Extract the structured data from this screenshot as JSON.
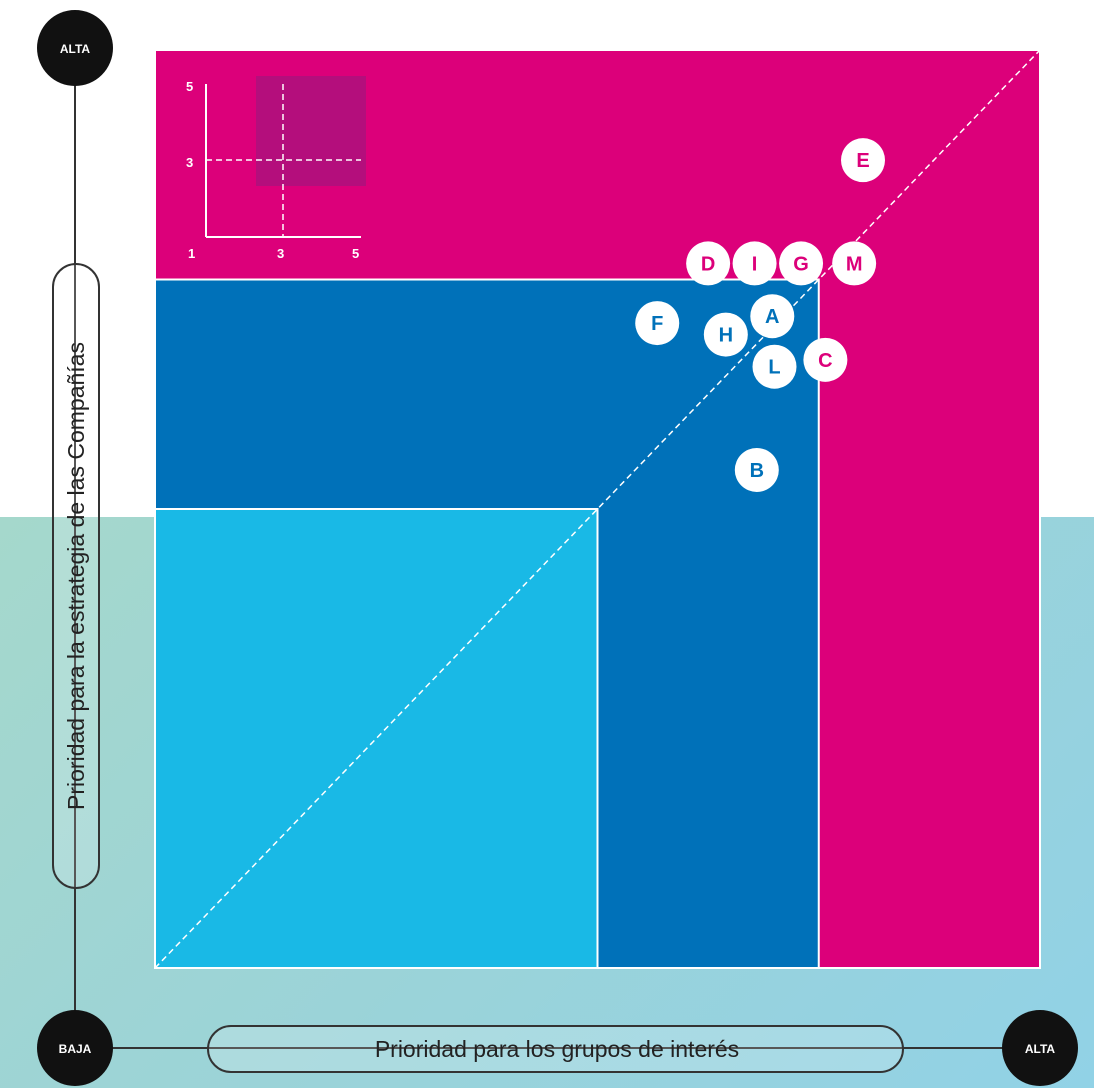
{
  "chart_data": {
    "type": "scatter",
    "title": "",
    "xlabel": "Prioridad para los grupos de interés",
    "ylabel": "Prioridad para la estrategia de las Compañías",
    "xlim": [
      1,
      5
    ],
    "ylim": [
      1,
      5
    ],
    "x_low_label": "BAJA",
    "x_high_label": "ALTA",
    "y_high_label": "ALTA",
    "zones": [
      {
        "x0": 1,
        "x1": 5,
        "y0": 1,
        "y1": 5,
        "color": "#dc007a"
      },
      {
        "x0": 1,
        "x1": 4,
        "y0": 1,
        "y1": 4,
        "color": "#0071b9"
      },
      {
        "x0": 1,
        "x1": 3,
        "y0": 1,
        "y1": 3,
        "color": "#19b9e6"
      }
    ],
    "points": [
      {
        "label": "E",
        "x": 4.2,
        "y": 4.52
      },
      {
        "label": "D",
        "x": 3.5,
        "y": 4.07
      },
      {
        "label": "I",
        "x": 3.71,
        "y": 4.07
      },
      {
        "label": "G",
        "x": 3.92,
        "y": 4.07
      },
      {
        "label": "M",
        "x": 4.16,
        "y": 4.07
      },
      {
        "label": "F",
        "x": 3.27,
        "y": 3.81
      },
      {
        "label": "A",
        "x": 3.79,
        "y": 3.84
      },
      {
        "label": "H",
        "x": 3.58,
        "y": 3.76
      },
      {
        "label": "C",
        "x": 4.03,
        "y": 3.65
      },
      {
        "label": "L",
        "x": 3.8,
        "y": 3.62
      },
      {
        "label": "B",
        "x": 3.72,
        "y": 3.17
      }
    ],
    "inset": {
      "x_ticks": [
        "1",
        "3",
        "5"
      ],
      "y_ticks": [
        "5",
        "3"
      ]
    }
  }
}
